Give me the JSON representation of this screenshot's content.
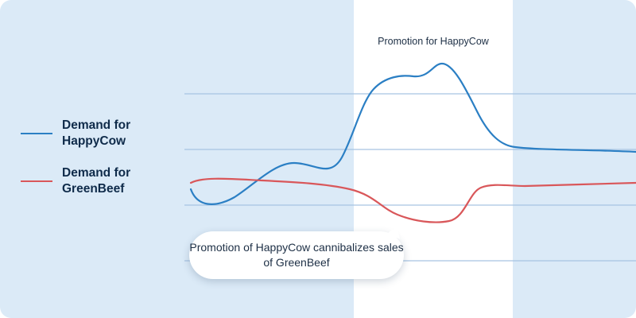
{
  "chart_data": {
    "type": "line",
    "title": "",
    "xlabel": "",
    "ylabel": "",
    "grid": true,
    "legend_position": "left",
    "highlight_band": {
      "label": "Promotion for HappyCow",
      "color": "#ffffff"
    },
    "annotation": "Promotion of HappyCow cannibalizes sales of GreenBeef",
    "series": [
      {
        "name": "Demand for HappyCow",
        "color": "#2b7fc4"
      },
      {
        "name": "Demand for GreenBeef",
        "color": "#d9575a"
      }
    ]
  },
  "colors": {
    "background": "#dbeaf7",
    "gridline": "#a7c4e2",
    "text": "#0f2b4a"
  }
}
